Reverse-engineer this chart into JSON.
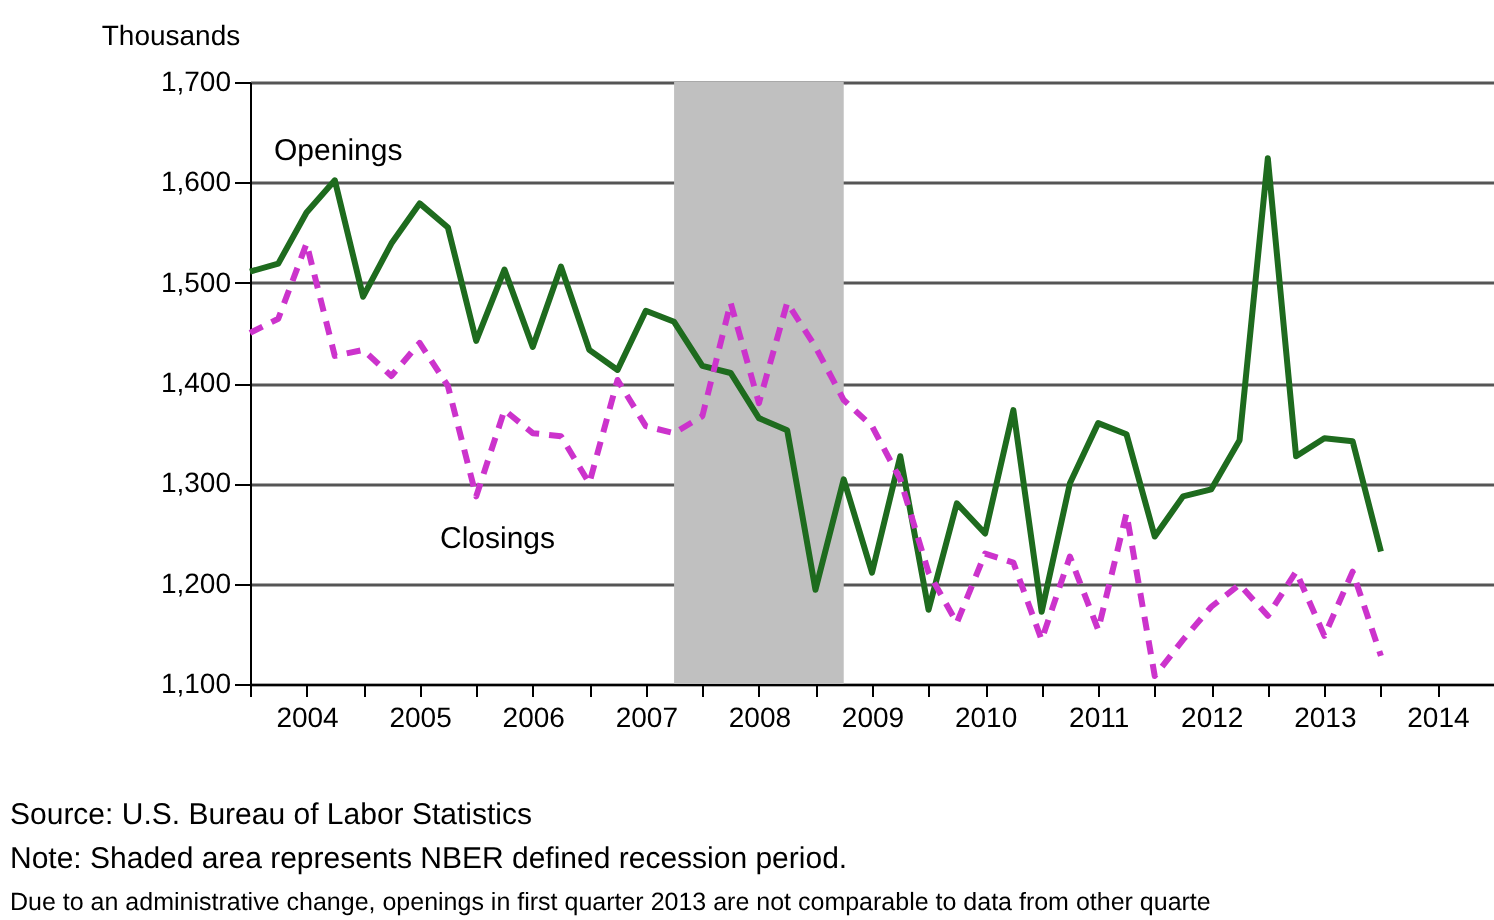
{
  "chart_data": {
    "type": "line",
    "ylabel": "Thousands",
    "x": [
      2004.0,
      2004.25,
      2004.5,
      2004.75,
      2005.0,
      2005.25,
      2005.5,
      2005.75,
      2006.0,
      2006.25,
      2006.5,
      2006.75,
      2007.0,
      2007.25,
      2007.5,
      2007.75,
      2008.0,
      2008.25,
      2008.5,
      2008.75,
      2009.0,
      2009.25,
      2009.5,
      2009.75,
      2010.0,
      2010.25,
      2010.5,
      2010.75,
      2011.0,
      2011.25,
      2011.5,
      2011.75,
      2012.0,
      2012.25,
      2012.5,
      2012.75,
      2013.0,
      2013.25,
      2013.5,
      2013.75,
      2014.0
    ],
    "series": [
      {
        "name": "Openings",
        "color": "#1e6b1e",
        "line_style": "solid",
        "values": [
          1511,
          1519,
          1570,
          1602,
          1486,
          1539,
          1579,
          1555,
          1442,
          1513,
          1436,
          1516,
          1433,
          1413,
          1472,
          1461,
          1417,
          1410,
          1365,
          1353,
          1194,
          1304,
          1211,
          1327,
          1174,
          1280,
          1250,
          1373,
          1172,
          1300,
          1360,
          1349,
          1247,
          1287,
          1294,
          1343,
          1624,
          1327,
          1345,
          1342,
          1232
        ]
      },
      {
        "name": "Closings",
        "color": "#cc33cc",
        "line_style": "dashed",
        "values": [
          1450,
          1464,
          1539,
          1427,
          1433,
          1407,
          1440,
          1397,
          1287,
          1373,
          1350,
          1347,
          1300,
          1403,
          1357,
          1350,
          1367,
          1480,
          1380,
          1480,
          1436,
          1383,
          1357,
          1304,
          1211,
          1161,
          1230,
          1221,
          1144,
          1227,
          1154,
          1270,
          1108,
          1144,
          1177,
          1199,
          1168,
          1212,
          1148,
          1212,
          1128
        ]
      }
    ],
    "xlim": [
      2004,
      2015
    ],
    "xticks": [
      {
        "value": 2004,
        "label": null
      },
      {
        "value": 2004.5,
        "label": "2004"
      },
      {
        "value": 2005,
        "label": null
      },
      {
        "value": 2005.5,
        "label": "2005"
      },
      {
        "value": 2006,
        "label": null
      },
      {
        "value": 2006.5,
        "label": "2006"
      },
      {
        "value": 2007,
        "label": null
      },
      {
        "value": 2007.5,
        "label": "2007"
      },
      {
        "value": 2008,
        "label": null
      },
      {
        "value": 2008.5,
        "label": "2008"
      },
      {
        "value": 2009,
        "label": null
      },
      {
        "value": 2009.5,
        "label": "2009"
      },
      {
        "value": 2010,
        "label": null
      },
      {
        "value": 2010.5,
        "label": "2010"
      },
      {
        "value": 2011,
        "label": null
      },
      {
        "value": 2011.5,
        "label": "2011"
      },
      {
        "value": 2012,
        "label": null
      },
      {
        "value": 2012.5,
        "label": "2012"
      },
      {
        "value": 2013,
        "label": null
      },
      {
        "value": 2013.5,
        "label": "2013"
      },
      {
        "value": 2014,
        "label": null
      },
      {
        "value": 2014.5,
        "label": "2014"
      }
    ],
    "ylim": [
      1100,
      1700
    ],
    "yticks": [
      {
        "value": 1100,
        "label": "1,100"
      },
      {
        "value": 1200,
        "label": "1,200"
      },
      {
        "value": 1300,
        "label": "1,300"
      },
      {
        "value": 1400,
        "label": "1,400"
      },
      {
        "value": 1500,
        "label": "1,500"
      },
      {
        "value": 1600,
        "label": "1,600"
      },
      {
        "value": 1700,
        "label": "1,700"
      }
    ],
    "grid": "y",
    "legend": false,
    "marker": "none",
    "bands": [
      {
        "axis": "x",
        "from": 2007.75,
        "to": 2009.25,
        "color": "#c0c0c0"
      }
    ],
    "annotations": [
      "Source: U.S. Bureau of Labor Statistics",
      "Note: Shaded area represents NBER defined recession period.",
      "Due to an administrative change, openings in first quarter 2013 are not comparable to data from other quarte"
    ]
  }
}
